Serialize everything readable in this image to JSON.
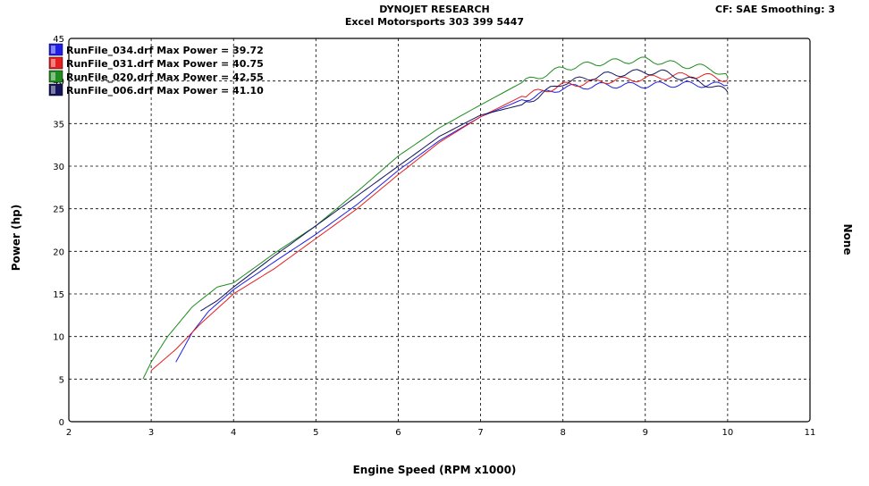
{
  "header": {
    "title": "DYNOJET RESEARCH",
    "subtitle": "Excel Motorsports 303 399 5447",
    "cf_info": "CF: SAE  Smoothing: 3"
  },
  "side_label": "None",
  "chart_data": {
    "type": "line",
    "xlabel": "Engine Speed (RPM x1000)",
    "ylabel": "Power (hp)",
    "xlim": [
      2,
      11
    ],
    "ylim": [
      0,
      45
    ],
    "xticks": [
      2,
      3,
      4,
      5,
      6,
      7,
      8,
      9,
      10,
      11
    ],
    "yticks": [
      0,
      5,
      10,
      15,
      20,
      25,
      30,
      35,
      40,
      45
    ],
    "grid": true,
    "legend_position": "top-left",
    "series": [
      {
        "name": "RunFile_034.drf Max Power = 39.72",
        "color": "#1e1ee6",
        "x": [
          3.3,
          3.5,
          3.7,
          4.0,
          4.5,
          5.0,
          5.5,
          6.0,
          6.5,
          7.0,
          7.5,
          8.0,
          8.5,
          9.0,
          9.3,
          9.6,
          10.0
        ],
        "y": [
          7.0,
          10.5,
          13.0,
          15.5,
          18.8,
          22.0,
          25.5,
          29.5,
          33.0,
          35.8,
          37.8,
          39.2,
          39.5,
          39.5,
          39.6,
          39.6,
          39.5
        ]
      },
      {
        "name": "RunFile_031.drf Max Power = 40.75",
        "color": "#e61e1e",
        "x": [
          3.0,
          3.3,
          3.6,
          4.0,
          4.5,
          5.0,
          5.5,
          6.0,
          6.5,
          7.0,
          7.5,
          8.0,
          8.5,
          9.0,
          9.5,
          9.8,
          10.0
        ],
        "y": [
          6.0,
          8.5,
          11.5,
          15.0,
          18.0,
          21.5,
          25.0,
          29.0,
          32.8,
          35.8,
          38.2,
          39.5,
          40.0,
          40.3,
          40.7,
          40.5,
          40.2
        ]
      },
      {
        "name": "RunFile_020.drf Max Power = 42.55",
        "color": "#1e8c1e",
        "x": [
          2.9,
          3.0,
          3.2,
          3.5,
          3.8,
          4.0,
          4.5,
          5.0,
          5.5,
          6.0,
          6.5,
          7.0,
          7.5,
          8.0,
          8.5,
          9.0,
          9.5,
          9.8,
          10.0
        ],
        "y": [
          5.0,
          7.0,
          10.0,
          13.5,
          15.8,
          16.3,
          19.8,
          23.0,
          27.0,
          31.2,
          34.5,
          37.2,
          39.8,
          41.5,
          42.2,
          42.5,
          41.8,
          41.5,
          40.5
        ]
      },
      {
        "name": "RunFile_006.drf Max Power = 41.10",
        "color": "#14145a",
        "x": [
          3.6,
          3.8,
          4.0,
          4.5,
          5.0,
          5.5,
          6.0,
          6.5,
          7.0,
          7.5,
          8.0,
          8.5,
          9.0,
          9.2,
          9.5,
          9.8,
          10.0
        ],
        "y": [
          13.0,
          14.2,
          15.8,
          19.5,
          23.0,
          26.5,
          30.0,
          33.5,
          36.0,
          37.2,
          39.8,
          40.7,
          41.1,
          41.0,
          40.3,
          39.5,
          38.7
        ]
      }
    ]
  }
}
